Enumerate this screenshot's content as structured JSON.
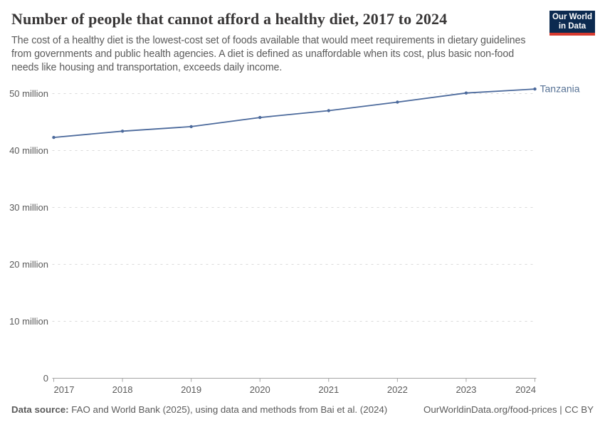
{
  "header": {
    "title": "Number of people that cannot afford a healthy diet, 2017 to 2024",
    "subtitle": "The cost of a healthy diet is the lowest-cost set of foods available that would meet requirements in dietary guidelines from governments and public health agencies. A diet is defined as unaffordable when its cost, plus basic non-food needs like housing and transportation, exceeds daily income.",
    "logo_line1": "Our World",
    "logo_line2": "in Data"
  },
  "chart_data": {
    "type": "line",
    "title": "Number of people that cannot afford a healthy diet, 2017 to 2024",
    "x": [
      2017,
      2018,
      2019,
      2020,
      2021,
      2022,
      2023,
      2024
    ],
    "xtick_labels": [
      "2017",
      "2018",
      "2019",
      "2020",
      "2021",
      "2022",
      "2023",
      "2024"
    ],
    "series": [
      {
        "name": "Tanzania",
        "color": "#4C6A9C",
        "label_color": "#577295",
        "values_millions": [
          42.3,
          43.4,
          44.2,
          45.8,
          47.0,
          48.5,
          50.1,
          50.8
        ]
      }
    ],
    "unit": "people",
    "ylim_millions": [
      0,
      51.5
    ],
    "yticks_millions": [
      0,
      10,
      20,
      30,
      40,
      50
    ],
    "ytick_labels": [
      "0",
      "10 million",
      "20 million",
      "30 million",
      "40 million",
      "50 million"
    ],
    "grid": "horizontal-dashed",
    "legend_position": "line-end-label"
  },
  "footer": {
    "source_label": "Data source:",
    "source_text": " FAO and World Bank (2025), using data and methods from Bai et al. (2024)",
    "attribution": "OurWorldinData.org/food-prices | CC BY"
  },
  "colors": {
    "line": "#4C6A9C",
    "logo_navy": "#0c2a50",
    "logo_red": "#d63a2f",
    "title_text": "#383636",
    "gray_text": "#5b5b5b",
    "gridline": "#dadada",
    "axis": "#a5a5a5"
  }
}
